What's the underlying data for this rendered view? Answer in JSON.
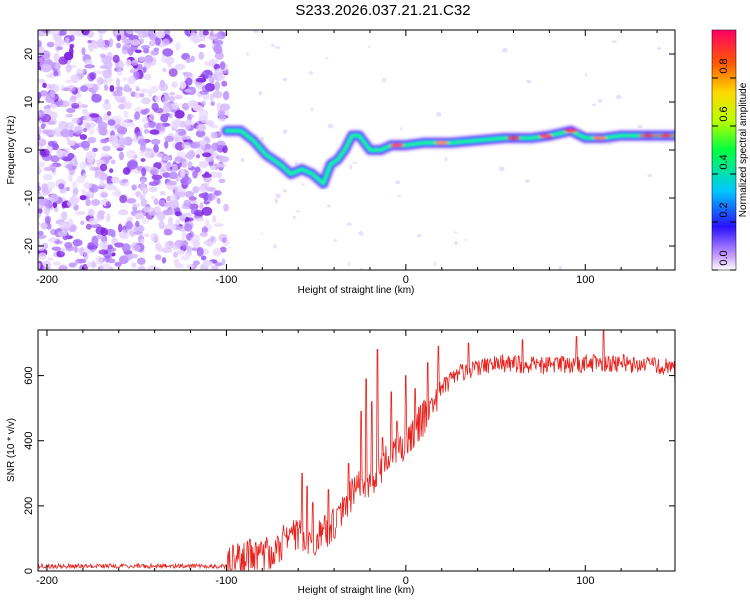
{
  "title": "S233.2026.037.21.21.C32",
  "colors": {
    "snr_line": "#e8211c",
    "noise_purple": "#7b1de0",
    "axis": "#000000",
    "background": "#ffffff"
  },
  "chart_data": [
    {
      "type": "heatmap",
      "name": "spectrogram",
      "xlabel": "Height of straight line (km)",
      "ylabel": "Frequency (Hz)",
      "xlim": [
        -205,
        150
      ],
      "ylim": [
        -25,
        25
      ],
      "xticks": [
        -200,
        -100,
        0,
        100
      ],
      "xtick_labels": [
        "-200",
        "-100",
        "0",
        "100"
      ],
      "yticks": [
        -20,
        -10,
        0,
        10,
        20
      ],
      "ytick_labels": [
        "-20",
        "-10",
        "0",
        "10",
        "20"
      ],
      "noise_region": [
        -205,
        -100
      ],
      "ridge": {
        "x": [
          -100,
          -92,
          -85,
          -78,
          -70,
          -64,
          -58,
          -52,
          -46,
          -42,
          -38,
          -34,
          -30,
          -26,
          -20,
          -14,
          -8,
          0,
          10,
          25,
          40,
          55,
          70,
          80,
          86,
          92,
          100,
          110,
          120,
          130,
          140,
          150
        ],
        "y": [
          4,
          4,
          2,
          -1,
          -3,
          -5,
          -4,
          -5,
          -7,
          -3,
          -2,
          0,
          3,
          3,
          0,
          0,
          1,
          1,
          1.5,
          1.5,
          2,
          2.5,
          2.5,
          3,
          3.5,
          4,
          2.5,
          2.5,
          3,
          3,
          3,
          3
        ]
      },
      "colorbar": {
        "label": "Normalized spectral amplitude",
        "range": [
          0,
          1
        ],
        "ticks": [
          0.0,
          0.2,
          0.4,
          0.6,
          0.8
        ],
        "tick_labels": [
          "0.0",
          "0.2",
          "0.4",
          "0.6",
          "0.8"
        ]
      }
    },
    {
      "type": "line",
      "name": "snr",
      "xlabel": "Height of straight line (km)",
      "ylabel": "SNR (10 * v/v)",
      "xlim": [
        -205,
        150
      ],
      "ylim": [
        0,
        740
      ],
      "xticks": [
        -200,
        -100,
        0,
        100
      ],
      "xtick_labels": [
        "-200",
        "-100",
        "0",
        "100"
      ],
      "yticks": [
        0,
        200,
        400,
        600
      ],
      "ytick_labels": [
        "0",
        "200",
        "400",
        "600"
      ],
      "envelope": {
        "x": [
          -205,
          -100,
          -90,
          -80,
          -70,
          -60,
          -50,
          -40,
          -30,
          -20,
          -10,
          0,
          10,
          20,
          30,
          50,
          80,
          110,
          150
        ],
        "y": [
          15,
          15,
          50,
          40,
          80,
          120,
          90,
          150,
          240,
          280,
          340,
          400,
          470,
          560,
          610,
          640,
          630,
          640,
          630
        ]
      },
      "spikes": {
        "x": [
          -58,
          -55,
          -52,
          -43,
          -32,
          -25,
          -22,
          -19,
          -16,
          -13,
          -8,
          -5,
          0,
          5,
          12,
          18,
          35,
          65,
          95,
          110,
          150
        ],
        "y": [
          300,
          260,
          210,
          250,
          330,
          490,
          590,
          520,
          680,
          410,
          550,
          460,
          600,
          560,
          640,
          690,
          700,
          710,
          720,
          740,
          580
        ]
      }
    }
  ]
}
